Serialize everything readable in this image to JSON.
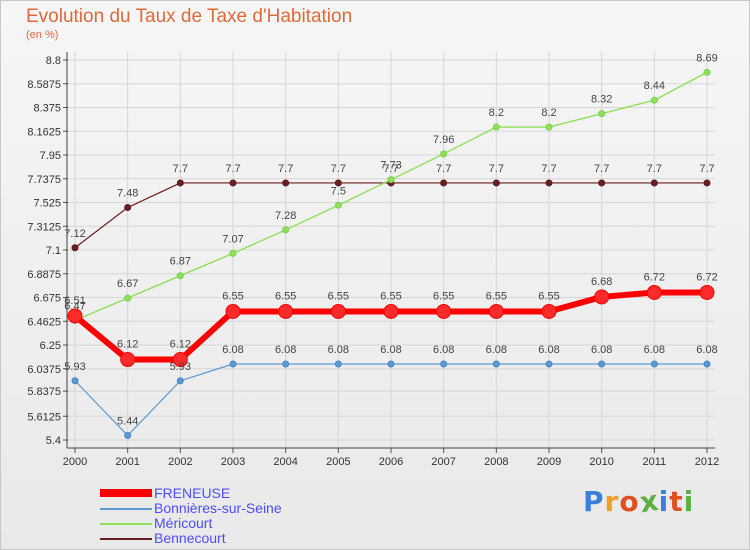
{
  "chart_data": {
    "type": "line",
    "title": "Evolution du Taux de Taxe d'Habitation",
    "subtitle": "(en %)",
    "x": [
      "2000",
      "2001",
      "2002",
      "2003",
      "2004",
      "2005",
      "2006",
      "2007",
      "2008",
      "2009",
      "2010",
      "2011",
      "2012"
    ],
    "yticks": [
      "5.4",
      "5.6125",
      "5.8375",
      "6.0375",
      "6.25",
      "6.4625",
      "6.675",
      "6.8875",
      "7.1",
      "7.3125",
      "7.525",
      "7.7375",
      "7.95",
      "8.1625",
      "8.375",
      "8.5875",
      "8.8"
    ],
    "ylim": [
      5.4,
      8.8
    ],
    "grid": true,
    "series": [
      {
        "name": "FRENEUSE",
        "color": "#ff0000",
        "values": [
          6.51,
          6.12,
          6.12,
          6.55,
          6.55,
          6.55,
          6.55,
          6.55,
          6.55,
          6.55,
          6.68,
          6.72,
          6.72
        ]
      },
      {
        "name": "Bonnières-sur-Seine",
        "color": "#5b9bd5",
        "values": [
          5.93,
          5.44,
          5.93,
          6.08,
          6.08,
          6.08,
          6.08,
          6.08,
          6.08,
          6.08,
          6.08,
          6.08,
          6.08
        ]
      },
      {
        "name": "Méricourt",
        "color": "#90e05a",
        "values": [
          6.47,
          6.67,
          6.87,
          7.07,
          7.28,
          7.5,
          7.73,
          7.96,
          8.2,
          8.2,
          8.32,
          8.44,
          8.69
        ]
      },
      {
        "name": "Bennecourt",
        "color": "#6b1f1f",
        "values": [
          7.12,
          7.48,
          7.7,
          7.7,
          7.7,
          7.7,
          7.7,
          7.7,
          7.7,
          7.7,
          7.7,
          7.7,
          7.7
        ]
      }
    ],
    "data_labels": [
      [
        "6.51",
        "6.12",
        "6.12",
        "6.55",
        "6.55",
        "6.55",
        "6.55",
        "6.55",
        "6.55",
        "6.55",
        "6.68",
        "6.72",
        "6.72"
      ],
      [
        "5.93",
        "5.44",
        "5.93",
        "6.08",
        "6.08",
        "6.08",
        "6.08",
        "6.08",
        "6.08",
        "6.08",
        "6.08",
        "6.08",
        "6.08"
      ],
      [
        "6.47",
        "6.67",
        "6.87",
        "7.07",
        "7.28",
        "7.5",
        "7.73",
        "7.96",
        "8.2",
        "8.2",
        "8.32",
        "8.44",
        "8.69"
      ],
      [
        "7.12",
        "7.48",
        "7.7",
        "7.7",
        "7.7",
        "7.7",
        "7.7",
        "7.7",
        "7.7",
        "7.7",
        "7.7",
        "7.7",
        "7.7"
      ]
    ]
  },
  "legend": [
    "FRENEUSE",
    "Bonnières-sur-Seine",
    "Méricourt",
    "Bennecourt"
  ],
  "brand": {
    "letters": [
      "P",
      "r",
      "o",
      "x",
      "i",
      "t",
      "i"
    ],
    "colors": [
      "#3a7fd9",
      "#f0a020",
      "#e05020",
      "#5ab040",
      "#3a7fd9",
      "#e05020",
      "#5ab040"
    ]
  }
}
